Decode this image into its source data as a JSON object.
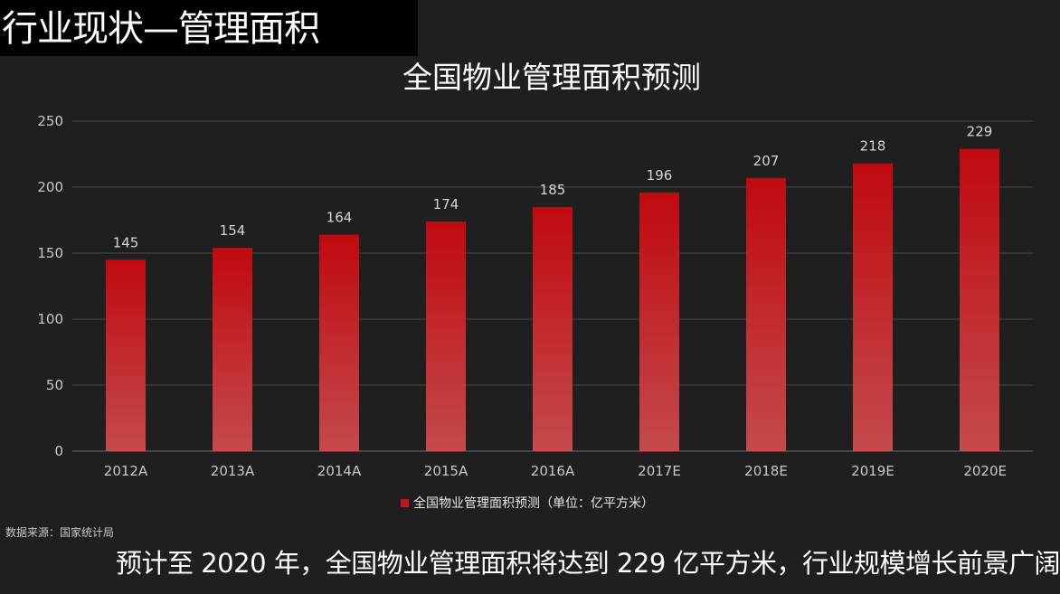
{
  "page": {
    "title": "行业现状—管理面积",
    "source_note": "数据来源：国家统计局",
    "conclusion": "预计至 2020 年，全国物业管理面积将达到 229 亿平方米，行业规模增长前景广阔"
  },
  "colors": {
    "background": "#1f1f1f",
    "header_band": "#000000",
    "bar_top": "#c0090f",
    "bar_bottom": "#c44a4c",
    "gridline": "#4a4a4a"
  },
  "chart_data": {
    "type": "bar",
    "title": "全国物业管理面积预测",
    "categories": [
      "2012A",
      "2013A",
      "2014A",
      "2015A",
      "2016A",
      "2017E",
      "2018E",
      "2019E",
      "2020E"
    ],
    "series": [
      {
        "name": "全国物业管理面积预测（单位：亿平方米）",
        "values": [
          145,
          154,
          164,
          174,
          185,
          196,
          207,
          218,
          229
        ]
      }
    ],
    "ylim": [
      0,
      250
    ],
    "yticks": [
      0,
      50,
      100,
      150,
      200,
      250
    ],
    "grid": true,
    "legend_position": "bottom"
  }
}
